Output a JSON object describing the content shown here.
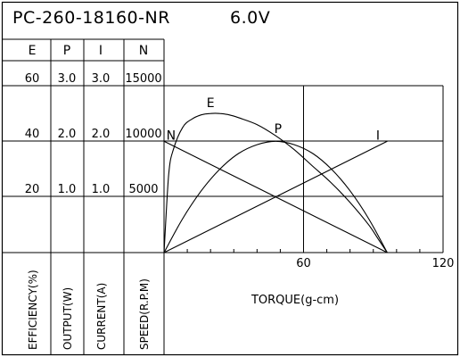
{
  "chart_data": {
    "type": "line",
    "title": "PC-260-18160-NR",
    "voltage": "6.0V",
    "xlabel": "TORQUE(g-cm)",
    "xlim": [
      0,
      120
    ],
    "x_ticks": [
      {
        "value": 60,
        "label": "60"
      },
      {
        "value": 120,
        "label": "120"
      }
    ],
    "columns": [
      {
        "key": "E",
        "header": "E",
        "axis_label": "EFFICIENCY(%)",
        "ticks": [
          "60",
          "40",
          "20"
        ],
        "max": 60
      },
      {
        "key": "P",
        "header": "P",
        "axis_label": "OUTPUT(W)",
        "ticks": [
          "3.0",
          "2.0",
          "1.0"
        ],
        "max": 3.0
      },
      {
        "key": "I",
        "header": "I",
        "axis_label": "CURRENT(A)",
        "ticks": [
          "3.0",
          "2.0",
          "1.0"
        ],
        "max": 3.0
      },
      {
        "key": "N",
        "header": "N",
        "axis_label": "SPEED(R.P.M)",
        "ticks": [
          "15000",
          "10000",
          "5000"
        ],
        "max": 15000
      }
    ],
    "series": [
      {
        "name": "N",
        "label": "N",
        "column": "N",
        "x": [
          0,
          96
        ],
        "y": [
          10000,
          0
        ]
      },
      {
        "name": "I",
        "label": "I",
        "column": "I",
        "x": [
          0,
          96
        ],
        "y": [
          0,
          2.0
        ]
      },
      {
        "name": "P",
        "label": "P",
        "column": "P",
        "x": [
          0,
          8,
          16,
          24,
          32,
          40,
          48,
          56,
          64,
          72,
          80,
          88,
          96
        ],
        "y": [
          0,
          0.61,
          1.11,
          1.5,
          1.78,
          1.94,
          2.0,
          1.94,
          1.78,
          1.5,
          1.11,
          0.61,
          0
        ]
      },
      {
        "name": "E",
        "label": "E",
        "column": "E",
        "x": [
          0,
          2,
          4,
          8,
          12,
          16,
          20,
          24,
          28,
          32,
          40,
          48,
          56,
          64,
          72,
          80,
          88,
          92,
          96
        ],
        "y": [
          0,
          28,
          37,
          45,
          48,
          49.5,
          50,
          50,
          49.5,
          48.5,
          46,
          42,
          37,
          31,
          25,
          18,
          10,
          5,
          0
        ]
      }
    ],
    "grid": true
  }
}
